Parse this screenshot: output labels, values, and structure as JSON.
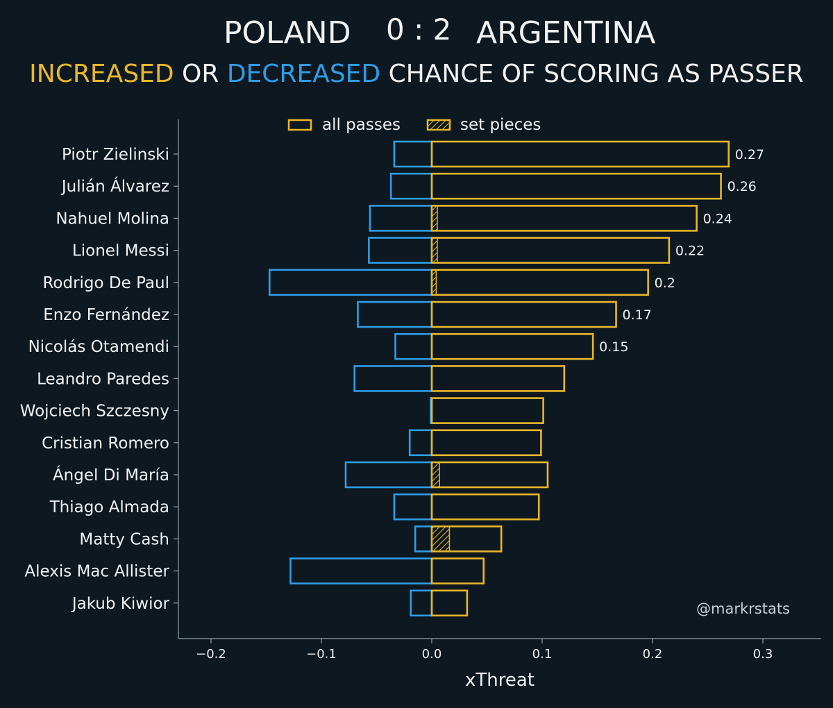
{
  "title": {
    "home": "POLAND",
    "score": "0 : 2",
    "away": "ARGENTINA"
  },
  "subtitle": {
    "part1": "INCREASED",
    "part2": "OR",
    "part3": "DECREASED",
    "part4": "CHANCE OF SCORING AS PASSER"
  },
  "colors": {
    "background": "#0e1820",
    "increased": "#e9b72a",
    "decreased": "#2e9de7",
    "text": "#f2f2f2",
    "axis": "#8fa3ad"
  },
  "legend": {
    "all_passes": "all passes",
    "set_pieces": "set pieces"
  },
  "watermark": "@markrstats",
  "chart_data": {
    "type": "bar",
    "orientation": "horizontal",
    "xlabel": "xThreat",
    "xlim": [
      -0.23,
      0.35
    ],
    "xticks": [
      -0.2,
      -0.1,
      0.0,
      0.1,
      0.2,
      0.3
    ],
    "xtick_labels": [
      "−0.2",
      "−0.1",
      "0.0",
      "0.1",
      "0.2",
      "0.3"
    ],
    "categories": [
      "Piotr Zielinski",
      "Julián Álvarez",
      "Nahuel Molina",
      "Lionel Messi",
      "Rodrigo De Paul",
      "Enzo Fernández",
      "Nicolás Otamendi",
      "Leandro Paredes",
      "Wojciech Szczesny",
      "Cristian Romero",
      "Ángel Di María",
      "Thiago Almada",
      "Matty Cash",
      "Alexis Mac Allister",
      "Jakub Kiwior"
    ],
    "series": [
      {
        "name": "increased",
        "values": [
          0.269,
          0.262,
          0.24,
          0.215,
          0.196,
          0.167,
          0.146,
          0.12,
          0.101,
          0.099,
          0.105,
          0.097,
          0.063,
          0.047,
          0.032
        ]
      },
      {
        "name": "decreased",
        "values": [
          -0.034,
          -0.037,
          -0.056,
          -0.057,
          -0.147,
          -0.067,
          -0.033,
          -0.07,
          -0.001,
          -0.02,
          -0.078,
          -0.034,
          -0.015,
          -0.128,
          -0.019
        ]
      },
      {
        "name": "set pieces",
        "values": [
          0,
          0,
          0.005,
          0.005,
          0.004,
          0,
          0,
          0,
          0,
          0,
          0.007,
          0,
          0.016,
          0,
          0
        ]
      }
    ],
    "value_labels": [
      "0.27",
      "0.26",
      "0.24",
      "0.22",
      "0.2",
      "0.17",
      "0.15",
      "",
      "",
      "",
      "",
      "",
      "",
      "",
      ""
    ],
    "legend_position": "top-center"
  }
}
